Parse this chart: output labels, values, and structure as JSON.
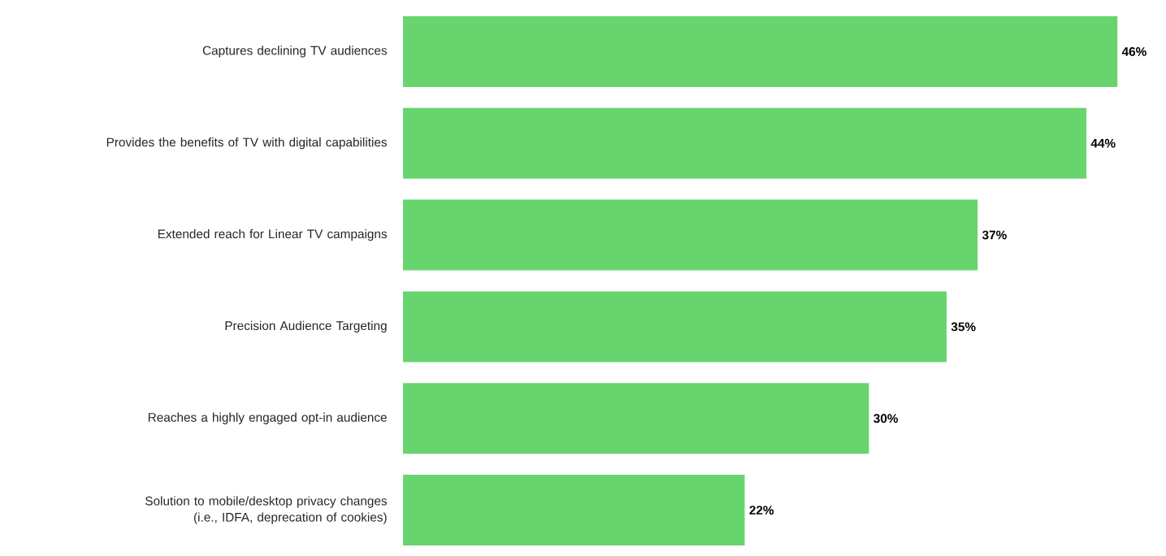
{
  "chart_data": {
    "type": "bar",
    "orientation": "horizontal",
    "categories": [
      "Captures declining TV audiences",
      "Provides the benefits of TV with digital capabilities",
      "Extended reach for Linear TV campaigns",
      "Precision Audience Targeting",
      "Reaches a highly engaged opt-in audience",
      "Solution to mobile/desktop privacy changes (i.e., IDFA, deprecation of cookies)"
    ],
    "values": [
      46,
      44,
      37,
      35,
      30,
      22
    ],
    "value_labels": [
      "46%",
      "44%",
      "37%",
      "35%",
      "30%",
      "22%"
    ],
    "color": "#68d46e"
  }
}
